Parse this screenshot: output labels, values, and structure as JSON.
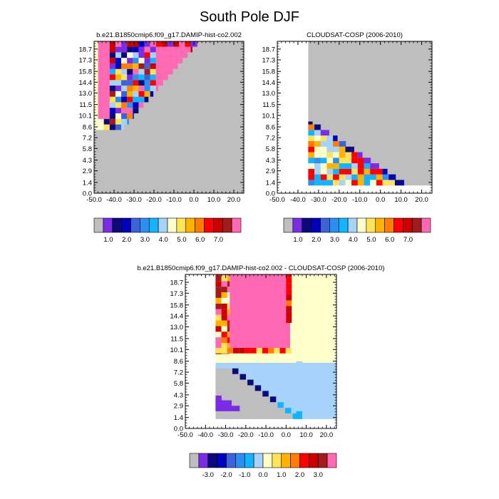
{
  "title": "South Pole DJF",
  "palette": [
    "#bebebe",
    "#7b2be6",
    "#0a0a78",
    "#0000c0",
    "#3b62d9",
    "#2a8ff0",
    "#12b4ff",
    "#a7d3fa",
    "#ffffcc",
    "#ffe45a",
    "#ffb300",
    "#ff7d00",
    "#ff0000",
    "#cc0000",
    "#a31c1c",
    "#ff69b4"
  ],
  "chart_data": [
    {
      "type": "heatmap",
      "title": "b.e21.B1850cmip6.f09_g17.DAMIP-hist-co2.002",
      "xlabel": "",
      "ylabel": "",
      "x_ticks": [
        "-50.0",
        "-40.0",
        "-30.0",
        "-20.0",
        "-10.0",
        "0.0",
        "10.0",
        "20.0"
      ],
      "y_ticks": [
        "0.0",
        "1.4",
        "2.9",
        "4.3",
        "5.8",
        "7.2",
        "8.6",
        "10.1",
        "11.5",
        "13.0",
        "14.4",
        "15.8",
        "17.3",
        "18.7"
      ],
      "colorbar_labels": [
        "1.0",
        "2.0",
        "3.0",
        "4.0",
        "5.0",
        "6.0",
        "7.0"
      ],
      "background": "gray below and right of the data region"
    },
    {
      "type": "heatmap",
      "title": "CLOUDSAT-COSP (2006-2010)",
      "xlabel": "",
      "ylabel": "",
      "x_ticks": [
        "-50.0",
        "-40.0",
        "-30.0",
        "-20.0",
        "-10.0",
        "0.0",
        "10.0",
        "20.0"
      ],
      "y_ticks": [
        "0.0",
        "1.4",
        "2.9",
        "4.3",
        "5.8",
        "7.2",
        "8.6",
        "10.1",
        "11.5",
        "13.0",
        "14.4",
        "15.8",
        "17.3",
        "18.7"
      ],
      "colorbar_labels": [
        "1.0",
        "2.0",
        "3.0",
        "4.0",
        "5.0",
        "6.0",
        "7.0"
      ],
      "background": "gray above the diagonal data region"
    },
    {
      "type": "heatmap",
      "title": "b.e21.B1850cmip6.f09_g17.DAMIP-hist-co2.002 - CLOUDSAT-COSP (2006-2010)",
      "xlabel": "",
      "ylabel": "",
      "x_ticks": [
        "-50.0",
        "-40.0",
        "-30.0",
        "-20.0",
        "-10.0",
        "0.0",
        "10.0",
        "20.0"
      ],
      "y_ticks": [
        "0.0",
        "1.4",
        "2.9",
        "4.3",
        "5.8",
        "7.2",
        "8.6",
        "10.1",
        "11.5",
        "13.0",
        "14.4",
        "15.8",
        "17.3",
        "18.7"
      ],
      "colorbar_labels": [
        "-3.0",
        "-2.0",
        "-1.0",
        "0.0",
        "1.0",
        "2.0",
        "3.0"
      ],
      "background": "light yellow over most of the plot"
    }
  ]
}
